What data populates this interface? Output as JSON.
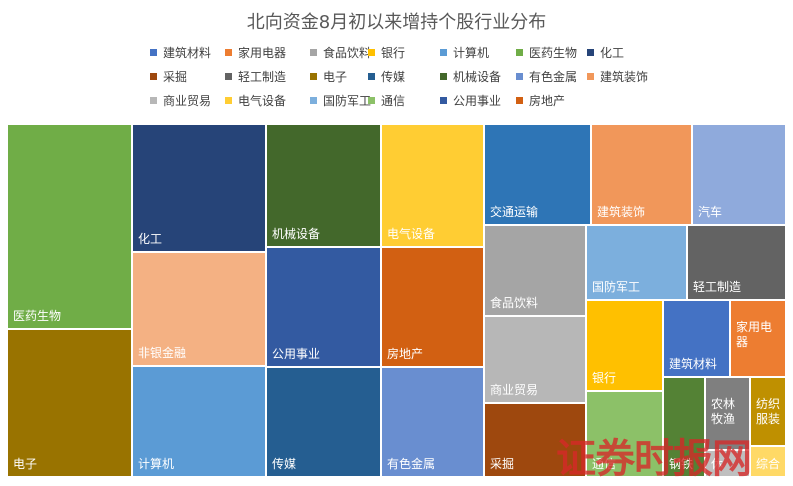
{
  "chart_data": {
    "type": "treemap",
    "title": "北向资金8月初以来增持个股行业分布",
    "legend_position": "top",
    "legend": [
      {
        "name": "建筑材料",
        "color": "#4472C4"
      },
      {
        "name": "家用电器",
        "color": "#ED7D31"
      },
      {
        "name": "食品饮料",
        "color": "#A5A5A5"
      },
      {
        "name": "银行",
        "color": "#FFC000"
      },
      {
        "name": "计算机",
        "color": "#5B9BD5"
      },
      {
        "name": "医药生物",
        "color": "#70AD47"
      },
      {
        "name": "化工",
        "color": "#264478"
      },
      {
        "name": "采掘",
        "color": "#9E480E"
      },
      {
        "name": "轻工制造",
        "color": "#636363"
      },
      {
        "name": "电子",
        "color": "#997300"
      },
      {
        "name": "传媒",
        "color": "#255E91"
      },
      {
        "name": "机械设备",
        "color": "#43682B"
      },
      {
        "name": "有色金属",
        "color": "#698ED0"
      },
      {
        "name": "建筑装饰",
        "color": "#F1975A"
      },
      {
        "name": "商业贸易",
        "color": "#B7B7B7"
      },
      {
        "name": "电气设备",
        "color": "#FFCD33"
      },
      {
        "name": "国防军工",
        "color": "#7CAFDD"
      },
      {
        "name": "通信",
        "color": "#8CC168"
      },
      {
        "name": "公用事业",
        "color": "#335AA1"
      },
      {
        "name": "房地产",
        "color": "#D26012"
      }
    ],
    "categories": [
      "医药生物",
      "电子",
      "化工",
      "非银金融",
      "计算机",
      "机械设备",
      "公用事业",
      "传媒",
      "电气设备",
      "房地产",
      "有色金属",
      "交通运输",
      "建筑装饰",
      "汽车",
      "食品饮料",
      "商业贸易",
      "采掘",
      "国防军工",
      "轻工制造",
      "银行",
      "通信",
      "建筑材料",
      "家用电器",
      "钢铁",
      "农林牧渔",
      "休闲服务",
      "纺织服装",
      "综合"
    ],
    "values": [
      37,
      30,
      25,
      21,
      19,
      24,
      23,
      18,
      18,
      15,
      15,
      12,
      11,
      11,
      10,
      10,
      9,
      8,
      8,
      7,
      7,
      6,
      6,
      4,
      3,
      1,
      3,
      1
    ],
    "colors": [
      "#70AD47",
      "#997300",
      "#264478",
      "#F4B183",
      "#5B9BD5",
      "#43682B",
      "#335AA1",
      "#255E91",
      "#FFCD33",
      "#D26012",
      "#698ED0",
      "#2E75B6",
      "#F1975A",
      "#8FAADC",
      "#A5A5A5",
      "#B7B7B7",
      "#9E480E",
      "#7CAFDD",
      "#636363",
      "#FFC000",
      "#8CC168",
      "#4472C4",
      "#ED7D31",
      "#548235",
      "#7F7F7F",
      "#BFBFBF",
      "#BF9000",
      "#FFD966"
    ],
    "labels": [
      "医药生物",
      "电子",
      "化工",
      "非银金融",
      "计算机",
      "机械设备",
      "公用事业",
      "传媒",
      "电气设备",
      "房地产",
      "有色金属",
      "交通运输",
      "建筑装饰",
      "汽车",
      "食品饮料",
      "商业贸易",
      "采掘",
      "国防军工",
      "轻工制造",
      "银行",
      "通信",
      "建筑材料",
      "家用电\n器",
      "钢铁",
      "农林\n牧渔",
      "休",
      "纺织\n服装",
      "综合"
    ]
  },
  "watermark": "证券时报网"
}
